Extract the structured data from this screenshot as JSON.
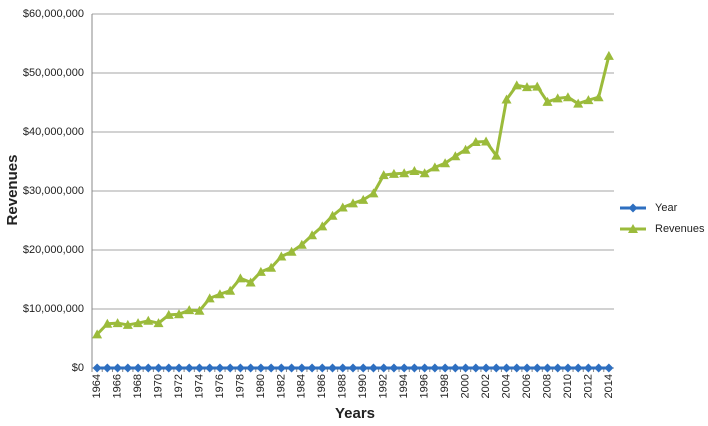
{
  "chart_data": {
    "type": "line",
    "x_label": "Years",
    "y_label": "Revenues",
    "categories": [
      "1964",
      null,
      "1966",
      null,
      "1968",
      null,
      "1970",
      null,
      "1972",
      null,
      "1974",
      null,
      "1976",
      null,
      "1978",
      null,
      "1980",
      null,
      "1982",
      null,
      "1984",
      null,
      "1986",
      null,
      "1988",
      null,
      "1990",
      null,
      "1992",
      null,
      "1994",
      null,
      "1996",
      null,
      "1998",
      null,
      "2000",
      null,
      "2002",
      null,
      "2004",
      null,
      "2006",
      null,
      "2008",
      null,
      "2010",
      null,
      "2012",
      null,
      "2014"
    ],
    "series": [
      {
        "name": "Year",
        "color": "#2e6fc0",
        "marker": "diamond",
        "values": [
          1964,
          1965,
          1966,
          1967,
          1968,
          1969,
          1970,
          1971,
          1972,
          1973,
          1974,
          1975,
          1976,
          1977,
          1978,
          1979,
          1980,
          1981,
          1982,
          1983,
          1984,
          1985,
          1986,
          1987,
          1988,
          1989,
          1990,
          1991,
          1992,
          1993,
          1994,
          1995,
          1996,
          1997,
          1998,
          1999,
          2000,
          2001,
          2002,
          2003,
          2004,
          2005,
          2006,
          2007,
          2008,
          2009,
          2010,
          2011,
          2012,
          2013,
          2014
        ]
      },
      {
        "name": "Revenues",
        "color": "#9bbb3b",
        "marker": "triangle",
        "values": [
          5700000,
          7500000,
          7600000,
          7300000,
          7600000,
          8000000,
          7600000,
          9000000,
          9100000,
          9800000,
          9700000,
          11800000,
          12500000,
          13100000,
          15200000,
          14500000,
          16300000,
          17000000,
          18900000,
          19700000,
          20900000,
          22500000,
          24000000,
          25800000,
          27200000,
          27900000,
          28500000,
          29600000,
          32700000,
          32900000,
          33000000,
          33400000,
          33000000,
          34000000,
          34700000,
          35900000,
          37000000,
          38300000,
          38400000,
          36000000,
          45500000,
          47900000,
          47600000,
          47700000,
          45100000,
          45700000,
          45900000,
          44800000,
          45400000,
          45900000,
          52900000
        ]
      }
    ],
    "ylim": [
      0,
      60000000
    ],
    "yticks": [
      {
        "value": 0,
        "label": "$0"
      },
      {
        "value": 10000000,
        "label": "$10,000,000"
      },
      {
        "value": 20000000,
        "label": "$20,000,000"
      },
      {
        "value": 30000000,
        "label": "$30,000,000"
      },
      {
        "value": 40000000,
        "label": "$40,000,000"
      },
      {
        "value": 50000000,
        "label": "$50,000,000"
      },
      {
        "value": 60000000,
        "label": "$60,000,000"
      }
    ],
    "grid": true,
    "legend": "right"
  }
}
